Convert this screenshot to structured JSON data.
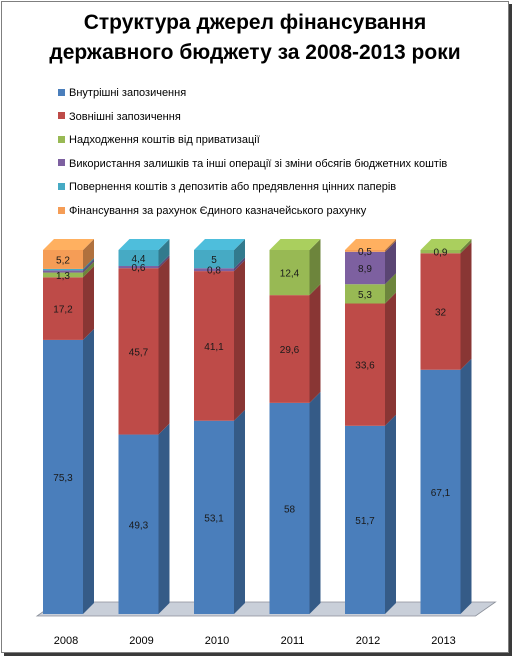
{
  "chart_data": {
    "type": "bar",
    "stacked": true,
    "title_lines": [
      "Структура джерел фінансування",
      "державного  бюджету за 2008-2013 роки"
    ],
    "categories": [
      "2008",
      "2009",
      "2010",
      "2011",
      "2012",
      "2013"
    ],
    "series": [
      {
        "name": "Внутрішні запозичення",
        "color": "#4a7ebb",
        "values": [
          75.3,
          49.3,
          53.1,
          58,
          51.7,
          67.1
        ],
        "labels": [
          "75,3",
          "49,3",
          "53,1",
          "58",
          "51,7",
          "67,1"
        ]
      },
      {
        "name": "Зовнішні запозичення",
        "color": "#be4b48",
        "values": [
          17.2,
          45.7,
          41.1,
          29.6,
          33.6,
          32
        ],
        "labels": [
          "17,2",
          "45,7",
          "41,1",
          "29,6",
          "33,6",
          "32"
        ]
      },
      {
        "name": "Надходження коштів від приватизації",
        "color": "#98b954",
        "values": [
          1.3,
          0,
          0,
          12.4,
          5.3,
          0.9
        ],
        "labels": [
          "1,3",
          "",
          "",
          "12,4",
          "5,3",
          "0,9"
        ]
      },
      {
        "name": "Використання залишків та інші операції зі зміни обсягів бюджетних коштів",
        "color": "#7d60a0",
        "values": [
          0.6,
          0.6,
          0.8,
          0,
          8.9,
          0
        ],
        "labels": [
          "",
          "0,6",
          "0,8",
          "",
          "8,9",
          ""
        ]
      },
      {
        "name": "Повернення коштів з депозитів або предявлення цінних паперів",
        "color": "#46aac4",
        "values": [
          0.4,
          4.4,
          5,
          0,
          0,
          0
        ],
        "labels": [
          "",
          "4,4",
          "5",
          "",
          "",
          ""
        ]
      },
      {
        "name": "Фінансування за рахунок Єдиного казначейського рахунку",
        "color": "#f59d56",
        "values": [
          5.2,
          0,
          0,
          0,
          0.5,
          0
        ],
        "labels": [
          "5,2",
          "",
          "",
          "",
          "0,5",
          ""
        ]
      }
    ],
    "ylim": [
      0,
      100
    ],
    "grid": false,
    "legend_position": "top",
    "three_d": true
  }
}
